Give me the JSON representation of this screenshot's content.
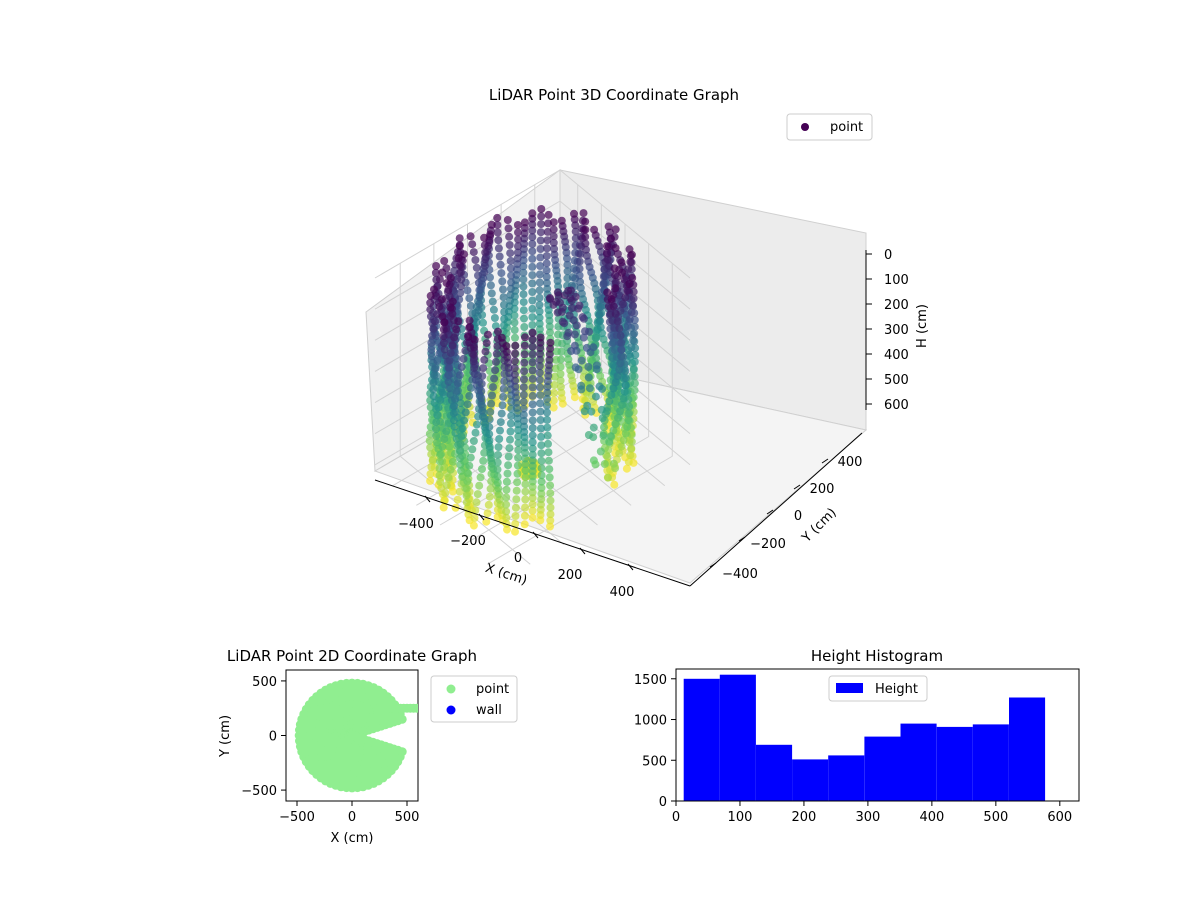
{
  "chart_data": [
    {
      "type": "scatter3d",
      "title": "LiDAR Point 3D Coordinate Graph",
      "xlabel": "X (cm)",
      "ylabel": "Y (cm)",
      "zlabel": "H (cm)",
      "x_ticks": [
        -400,
        -200,
        0,
        200,
        400
      ],
      "y_ticks": [
        400,
        200,
        0,
        -200,
        -400
      ],
      "z_ticks": [
        0,
        100,
        200,
        300,
        400,
        500,
        600
      ],
      "xlim": [
        -550,
        550
      ],
      "ylim": [
        -550,
        550
      ],
      "zlim": [
        0,
        620
      ],
      "z_inverted": true,
      "colormap": "viridis",
      "legend": {
        "loc": "upper right",
        "entries": [
          {
            "label": "point",
            "color": "#440154"
          }
        ]
      },
      "grid": true,
      "series": [
        {
          "name": "point",
          "shape": "partial cylindrical wall, radius ~500 cm, open toward +X, colored by height",
          "ring_radius": 500,
          "ring_height_range": [
            0,
            600
          ],
          "opening_angle_range_deg": [
            -25,
            25
          ]
        }
      ]
    },
    {
      "type": "scatter",
      "title": "LiDAR Point 2D Coordinate Graph",
      "xlabel": "X (cm)",
      "ylabel": "Y (cm)",
      "x_ticks": [
        -500,
        0,
        500
      ],
      "y_ticks": [
        500,
        0,
        -500
      ],
      "xlim": [
        -600,
        600
      ],
      "ylim": [
        -600,
        600
      ],
      "legend": {
        "loc": "outside right",
        "entries": [
          {
            "label": "point",
            "color": "#90ee90"
          },
          {
            "label": "wall",
            "color": "#0000ff"
          }
        ]
      },
      "series": [
        {
          "name": "point",
          "color": "#90ee90",
          "shape": "filled disk radius ~500 cm with notch toward +X"
        },
        {
          "name": "wall",
          "color": "#0000ff",
          "points": []
        }
      ]
    },
    {
      "type": "bar",
      "title": "Height Histogram",
      "legend": {
        "loc": "upper center",
        "entries": [
          {
            "label": "Height",
            "color": "#0000ff"
          }
        ]
      },
      "x_ticks": [
        0,
        100,
        200,
        300,
        400,
        500,
        600
      ],
      "y_ticks": [
        0,
        500,
        1000,
        1500
      ],
      "xlim": [
        0,
        630
      ],
      "ylim": [
        0,
        1620
      ],
      "bar_color": "#0000ff",
      "bins": [
        12,
        68.5,
        125,
        181.5,
        238,
        294.5,
        351,
        407.5,
        464,
        520.5,
        577
      ],
      "counts": [
        1500,
        1550,
        690,
        510,
        560,
        790,
        950,
        910,
        940,
        1270
      ]
    }
  ]
}
